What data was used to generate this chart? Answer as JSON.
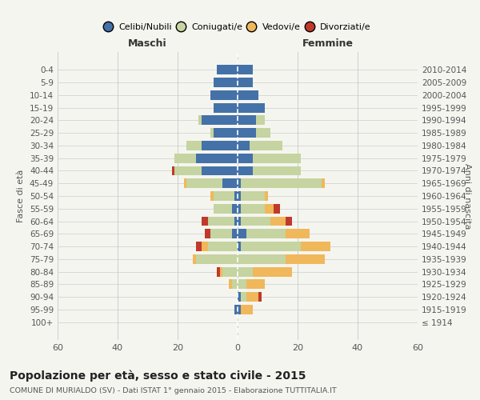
{
  "age_groups": [
    "100+",
    "95-99",
    "90-94",
    "85-89",
    "80-84",
    "75-79",
    "70-74",
    "65-69",
    "60-64",
    "55-59",
    "50-54",
    "45-49",
    "40-44",
    "35-39",
    "30-34",
    "25-29",
    "20-24",
    "15-19",
    "10-14",
    "5-9",
    "0-4"
  ],
  "birth_years": [
    "≤ 1914",
    "1915-1919",
    "1920-1924",
    "1925-1929",
    "1930-1934",
    "1935-1939",
    "1940-1944",
    "1945-1949",
    "1950-1954",
    "1955-1959",
    "1960-1964",
    "1965-1969",
    "1970-1974",
    "1975-1979",
    "1980-1984",
    "1985-1989",
    "1990-1994",
    "1995-1999",
    "2000-2004",
    "2005-2009",
    "2010-2014"
  ],
  "males": {
    "celibi": [
      0,
      1,
      0,
      0,
      0,
      0,
      0,
      2,
      1,
      2,
      1,
      5,
      12,
      14,
      12,
      8,
      12,
      8,
      9,
      8,
      7
    ],
    "coniugati": [
      0,
      0,
      0,
      2,
      5,
      14,
      10,
      7,
      9,
      6,
      7,
      12,
      9,
      7,
      5,
      1,
      1,
      0,
      0,
      0,
      0
    ],
    "vedovi": [
      0,
      0,
      0,
      1,
      1,
      1,
      2,
      0,
      0,
      0,
      1,
      1,
      0,
      0,
      0,
      0,
      0,
      0,
      0,
      0,
      0
    ],
    "divorziati": [
      0,
      0,
      0,
      0,
      1,
      0,
      2,
      2,
      2,
      0,
      0,
      0,
      1,
      0,
      0,
      0,
      0,
      0,
      0,
      0,
      0
    ]
  },
  "females": {
    "nubili": [
      0,
      1,
      1,
      0,
      0,
      0,
      1,
      3,
      1,
      1,
      1,
      1,
      5,
      5,
      4,
      6,
      6,
      9,
      7,
      5,
      5
    ],
    "coniugate": [
      0,
      0,
      2,
      3,
      5,
      16,
      20,
      13,
      10,
      8,
      8,
      27,
      16,
      16,
      11,
      5,
      3,
      0,
      0,
      0,
      0
    ],
    "vedove": [
      0,
      4,
      4,
      6,
      13,
      13,
      10,
      8,
      5,
      3,
      1,
      1,
      0,
      0,
      0,
      0,
      0,
      0,
      0,
      0,
      0
    ],
    "divorziate": [
      0,
      0,
      1,
      0,
      0,
      0,
      0,
      0,
      2,
      2,
      0,
      0,
      0,
      0,
      0,
      0,
      0,
      0,
      0,
      0,
      0
    ]
  },
  "colors": {
    "celibi": "#4472a8",
    "coniugati": "#c5d4a0",
    "vedovi": "#f0b85a",
    "divorziati": "#c0392b"
  },
  "legend_labels": [
    "Celibi/Nubili",
    "Coniugati/e",
    "Vedovi/e",
    "Divorziati/e"
  ],
  "title": "Popolazione per età, sesso e stato civile - 2015",
  "subtitle": "COMUNE DI MURIALDO (SV) - Dati ISTAT 1° gennaio 2015 - Elaborazione TUTTITALIA.IT",
  "xlabel_left": "Maschi",
  "xlabel_right": "Femmine",
  "ylabel_left": "Fasce di età",
  "ylabel_right": "Anni di nascita",
  "xlim": 60,
  "background_color": "#f5f5f0",
  "grid_color": "#cccccc"
}
